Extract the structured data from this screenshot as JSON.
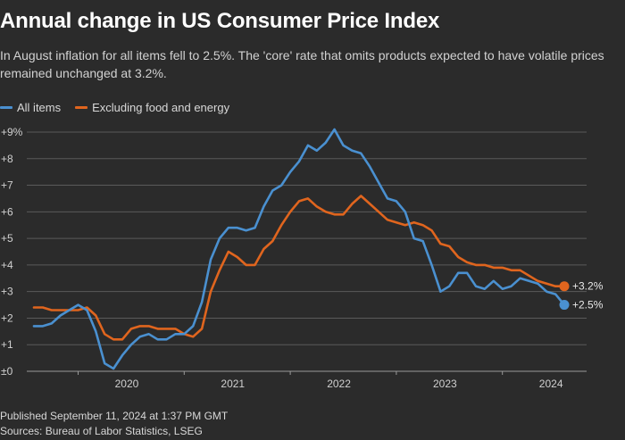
{
  "title": "Annual change in US Consumer Price Index",
  "subtitle": "In August inflation for all items fell to 2.5%. The 'core' rate that omits products expected to have volatile prices remained unchanged at 3.2%.",
  "footer": {
    "published": "Published September 11, 2024 at 1:37 PM GMT",
    "sources": "Sources: Bureau of Labor Statistics, LSEG"
  },
  "colors": {
    "background": "#2b2b2b",
    "all_items": "#4a90d0",
    "core": "#e0651e",
    "grid": "#5a5a5a"
  },
  "chart_data": {
    "type": "line",
    "title": "Annual change in US Consumer Price Index",
    "xlabel": "",
    "ylabel": "",
    "x": [
      "2019-08",
      "2019-09",
      "2019-10",
      "2019-11",
      "2019-12",
      "2020-01",
      "2020-02",
      "2020-03",
      "2020-04",
      "2020-05",
      "2020-06",
      "2020-07",
      "2020-08",
      "2020-09",
      "2020-10",
      "2020-11",
      "2020-12",
      "2021-01",
      "2021-02",
      "2021-03",
      "2021-04",
      "2021-05",
      "2021-06",
      "2021-07",
      "2021-08",
      "2021-09",
      "2021-10",
      "2021-11",
      "2021-12",
      "2022-01",
      "2022-02",
      "2022-03",
      "2022-04",
      "2022-05",
      "2022-06",
      "2022-07",
      "2022-08",
      "2022-09",
      "2022-10",
      "2022-11",
      "2022-12",
      "2023-01",
      "2023-02",
      "2023-03",
      "2023-04",
      "2023-05",
      "2023-06",
      "2023-07",
      "2023-08",
      "2023-09",
      "2023-10",
      "2023-11",
      "2023-12",
      "2024-01",
      "2024-02",
      "2024-03",
      "2024-04",
      "2024-05",
      "2024-06",
      "2024-07",
      "2024-08"
    ],
    "x_tick_labels": [
      "2020",
      "2021",
      "2022",
      "2023",
      "2024"
    ],
    "y_tick_labels": [
      "±0",
      "+1",
      "+2",
      "+3",
      "+4",
      "+5",
      "+6",
      "+7",
      "+8",
      "+9%"
    ],
    "ylim": [
      0,
      9
    ],
    "grid": true,
    "legend_position": "top-left",
    "series": [
      {
        "name": "All items",
        "color": "#4a90d0",
        "values": [
          1.7,
          1.7,
          1.8,
          2.1,
          2.3,
          2.5,
          2.3,
          1.5,
          0.3,
          0.1,
          0.6,
          1.0,
          1.3,
          1.4,
          1.2,
          1.2,
          1.4,
          1.4,
          1.7,
          2.6,
          4.2,
          5.0,
          5.4,
          5.4,
          5.3,
          5.4,
          6.2,
          6.8,
          7.0,
          7.5,
          7.9,
          8.5,
          8.3,
          8.6,
          9.1,
          8.5,
          8.3,
          8.2,
          7.7,
          7.1,
          6.5,
          6.4,
          6.0,
          5.0,
          4.9,
          4.0,
          3.0,
          3.2,
          3.7,
          3.7,
          3.2,
          3.1,
          3.4,
          3.1,
          3.2,
          3.5,
          3.4,
          3.3,
          3.0,
          2.9,
          2.5
        ],
        "end_label": "+2.5%"
      },
      {
        "name": "Excluding food and energy",
        "color": "#e0651e",
        "values": [
          2.4,
          2.4,
          2.3,
          2.3,
          2.3,
          2.3,
          2.4,
          2.1,
          1.4,
          1.2,
          1.2,
          1.6,
          1.7,
          1.7,
          1.6,
          1.6,
          1.6,
          1.4,
          1.3,
          1.6,
          3.0,
          3.8,
          4.5,
          4.3,
          4.0,
          4.0,
          4.6,
          4.9,
          5.5,
          6.0,
          6.4,
          6.5,
          6.2,
          6.0,
          5.9,
          5.9,
          6.3,
          6.6,
          6.3,
          6.0,
          5.7,
          5.6,
          5.5,
          5.6,
          5.5,
          5.3,
          4.8,
          4.7,
          4.3,
          4.1,
          4.0,
          4.0,
          3.9,
          3.9,
          3.8,
          3.8,
          3.6,
          3.4,
          3.3,
          3.2,
          3.2
        ],
        "end_label": "+3.2%"
      }
    ]
  }
}
